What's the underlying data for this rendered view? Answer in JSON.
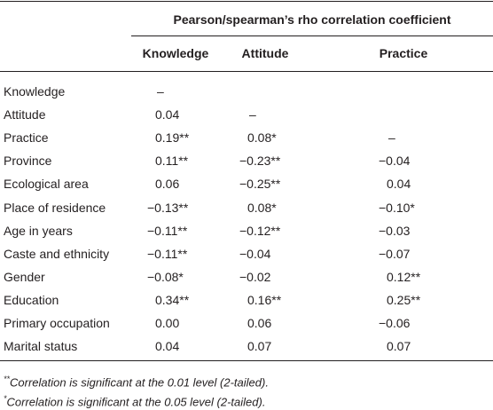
{
  "header": {
    "title": "Pearson/spearman’s rho correlation coefficient"
  },
  "table": {
    "columns": [
      "Knowledge",
      "Attitude",
      "Practice"
    ],
    "rows": [
      [
        "Knowledge",
        "–"
      ],
      [
        "Attitude",
        "0.04",
        "–"
      ],
      [
        "Practice",
        "0.19**",
        "0.08*",
        "–"
      ],
      [
        "Province",
        "0.11**",
        "−0.23**",
        "−0.04"
      ],
      [
        "Ecological area",
        "0.06",
        "−0.25**",
        "0.04"
      ],
      [
        "Place of residence",
        "−0.13**",
        "0.08*",
        "−0.10*"
      ],
      [
        "Age in years",
        "−0.11**",
        "−0.12**",
        "−0.03"
      ],
      [
        "Caste and ethnicity",
        "−0.11**",
        "−0.04",
        "−0.07"
      ],
      [
        "Gender",
        "−0.08*",
        "−0.02",
        "0.12**"
      ],
      [
        "Education",
        "0.34**",
        "0.16**",
        "0.25**"
      ],
      [
        "Primary occupation",
        "0.00",
        "0.06",
        "−0.06"
      ],
      [
        "Marital status",
        "0.04",
        "0.07",
        "0.07"
      ]
    ]
  },
  "notes": [
    {
      "mark": "**",
      "text": "Correlation is significant at the 0.01 level (2-tailed)."
    },
    {
      "mark": "*",
      "text": "Correlation is significant at the 0.05 level (2-tailed)."
    }
  ]
}
